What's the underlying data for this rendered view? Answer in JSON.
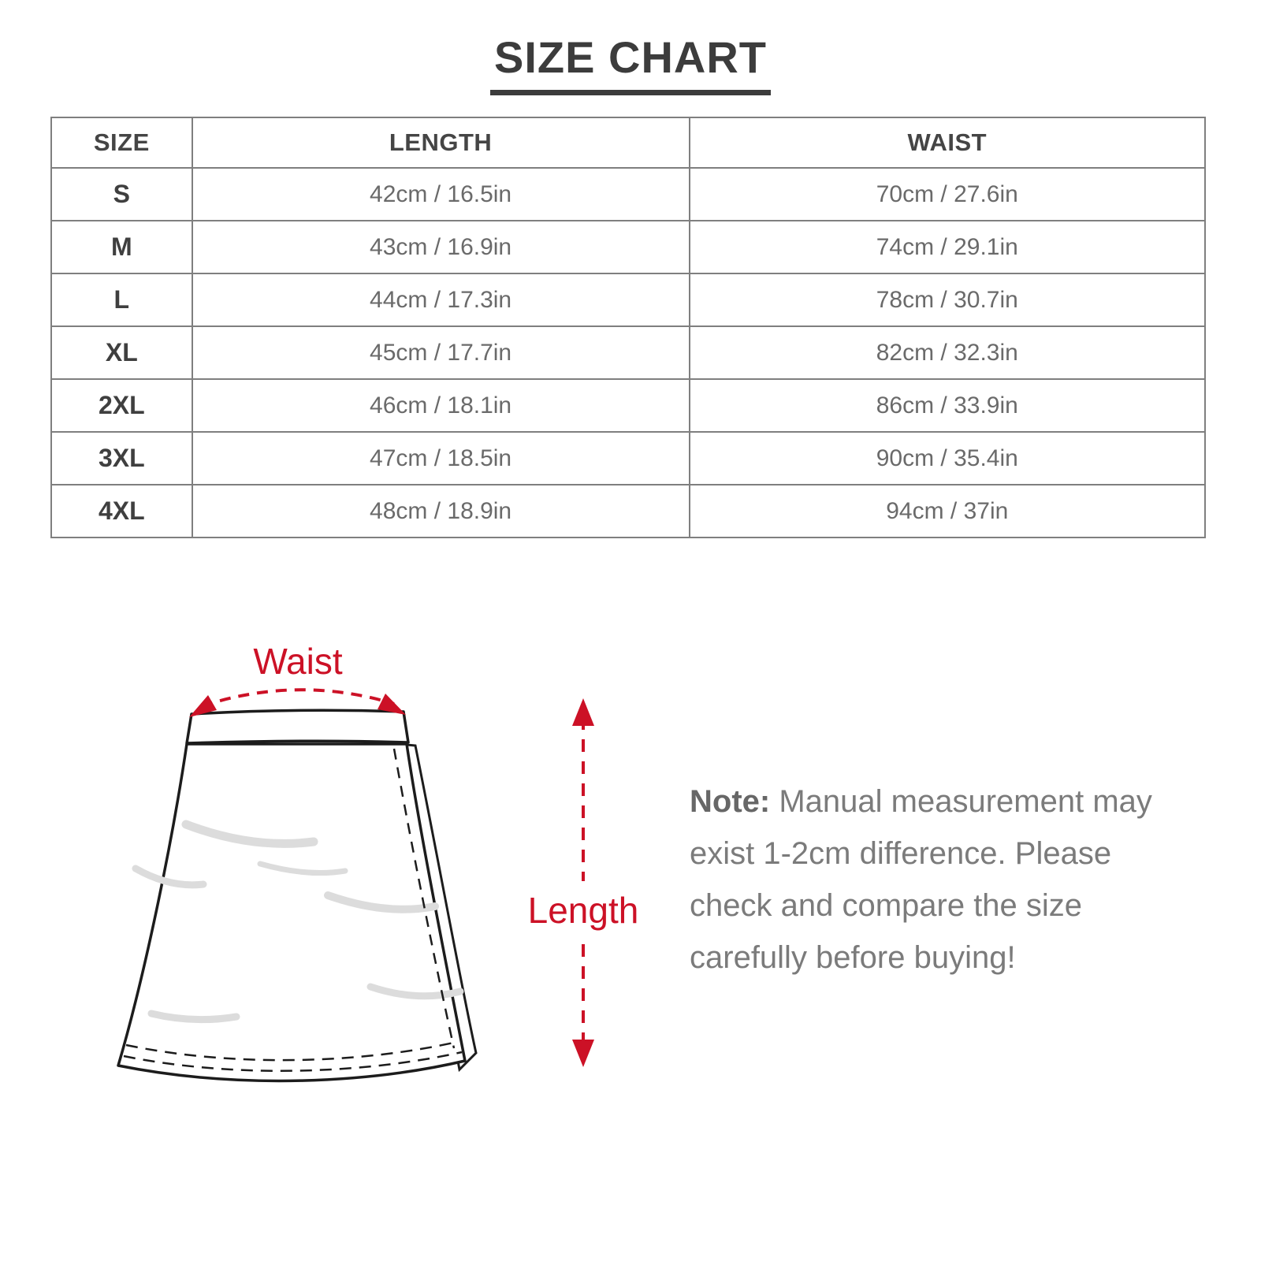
{
  "title": {
    "text": "SIZE CHART"
  },
  "chart_data": {
    "type": "table",
    "title": "SIZE CHART",
    "columns": [
      "SIZE",
      "LENGTH",
      "WAIST"
    ],
    "rows": [
      [
        "S",
        "42cm / 16.5in",
        "70cm / 27.6in"
      ],
      [
        "M",
        "43cm / 16.9in",
        "74cm / 29.1in"
      ],
      [
        "L",
        "44cm / 17.3in",
        "78cm / 30.7in"
      ],
      [
        "XL",
        "45cm / 17.7in",
        "82cm / 32.3in"
      ],
      [
        "2XL",
        "46cm / 18.1in",
        "86cm / 33.9in"
      ],
      [
        "3XL",
        "47cm / 18.5in",
        "90cm / 35.4in"
      ],
      [
        "4XL",
        "48cm / 18.9in",
        "94cm / 37in"
      ]
    ]
  },
  "diagram": {
    "waist_label": "Waist",
    "length_label": "Length",
    "annotation_color": "#cc1126",
    "outline_color": "#1c1c1c"
  },
  "note": {
    "label": "Note:",
    "lines": [
      "Manual measurement may",
      "exist 1-2cm difference. Please",
      "check and compare the size",
      "carefully before buying!"
    ]
  }
}
